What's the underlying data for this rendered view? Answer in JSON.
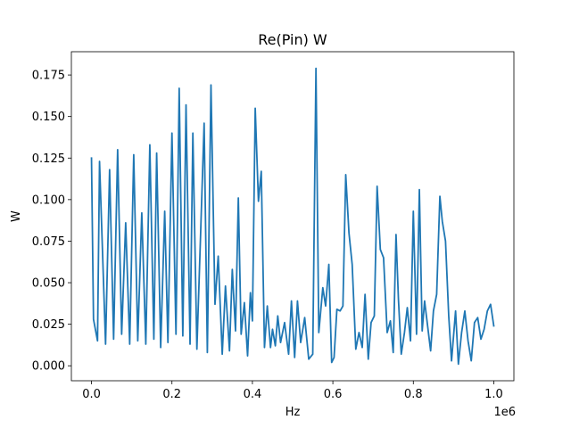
{
  "chart_data": {
    "type": "line",
    "title": "Re(Pin) W",
    "xlabel": "Hz",
    "ylabel": "W",
    "x_scale_label": "1e6",
    "x_scale": 1000000,
    "xlim": [
      -50000,
      1050000
    ],
    "ylim": [
      -0.009,
      0.189
    ],
    "xticks": [
      0,
      0.2,
      0.4,
      0.6,
      0.8,
      1.0
    ],
    "xtick_labels": [
      "0.0",
      "0.2",
      "0.4",
      "0.6",
      "0.8",
      "1.0"
    ],
    "yticks": [
      0.0,
      0.025,
      0.05,
      0.075,
      0.1,
      0.125,
      0.15,
      0.175
    ],
    "ytick_labels": [
      "0.000",
      "0.025",
      "0.050",
      "0.075",
      "0.100",
      "0.125",
      "0.150",
      "0.175"
    ],
    "grid": false,
    "series": [
      {
        "color": "#1f77b4",
        "x": [
          0,
          5000,
          15000,
          20000,
          35000,
          45000,
          55000,
          65000,
          75000,
          85000,
          95000,
          105000,
          115000,
          125000,
          135000,
          145000,
          155000,
          162000,
          172000,
          182000,
          190000,
          200000,
          210000,
          218000,
          227000,
          235000,
          245000,
          252000,
          262000,
          272000,
          280000,
          288000,
          297000,
          307000,
          315000,
          325000,
          333000,
          343000,
          350000,
          358000,
          365000,
          372000,
          380000,
          388000,
          395000,
          400000,
          407000,
          415000,
          422000,
          430000,
          437000,
          445000,
          450000,
          457000,
          463000,
          470000,
          480000,
          490000,
          497000,
          505000,
          512000,
          520000,
          530000,
          540000,
          550000,
          558000,
          565000,
          575000,
          582000,
          590000,
          597000,
          603000,
          610000,
          618000,
          625000,
          632000,
          640000,
          648000,
          657000,
          665000,
          673000,
          680000,
          688000,
          695000,
          703000,
          710000,
          718000,
          726000,
          735000,
          743000,
          750000,
          757000,
          763000,
          770000,
          778000,
          785000,
          793000,
          800000,
          808000,
          815000,
          822000,
          828000,
          835000,
          843000,
          850000,
          858000,
          866000,
          872000,
          880000,
          888000,
          895000,
          905000,
          912000,
          920000,
          928000,
          936000,
          944000,
          952000,
          960000,
          968000,
          976000,
          984000,
          992000,
          1000000
        ],
        "y": [
          0.125,
          0.028,
          0.015,
          0.123,
          0.013,
          0.118,
          0.016,
          0.13,
          0.019,
          0.086,
          0.013,
          0.127,
          0.015,
          0.092,
          0.013,
          0.133,
          0.016,
          0.128,
          0.011,
          0.093,
          0.014,
          0.14,
          0.019,
          0.167,
          0.018,
          0.157,
          0.013,
          0.14,
          0.01,
          0.085,
          0.146,
          0.008,
          0.169,
          0.037,
          0.066,
          0.007,
          0.048,
          0.009,
          0.058,
          0.021,
          0.101,
          0.019,
          0.038,
          0.006,
          0.044,
          0.027,
          0.155,
          0.099,
          0.117,
          0.011,
          0.036,
          0.011,
          0.022,
          0.012,
          0.03,
          0.014,
          0.026,
          0.007,
          0.039,
          0.005,
          0.039,
          0.014,
          0.029,
          0.004,
          0.007,
          0.179,
          0.02,
          0.047,
          0.036,
          0.061,
          0.002,
          0.005,
          0.034,
          0.033,
          0.036,
          0.115,
          0.08,
          0.061,
          0.01,
          0.02,
          0.011,
          0.043,
          0.004,
          0.026,
          0.03,
          0.108,
          0.07,
          0.065,
          0.02,
          0.027,
          0.008,
          0.079,
          0.04,
          0.007,
          0.02,
          0.035,
          0.015,
          0.093,
          0.019,
          0.106,
          0.021,
          0.039,
          0.025,
          0.009,
          0.033,
          0.043,
          0.102,
          0.087,
          0.075,
          0.03,
          0.003,
          0.033,
          0.001,
          0.02,
          0.033,
          0.015,
          0.003,
          0.026,
          0.029,
          0.016,
          0.022,
          0.033,
          0.037,
          0.024
        ]
      }
    ]
  }
}
